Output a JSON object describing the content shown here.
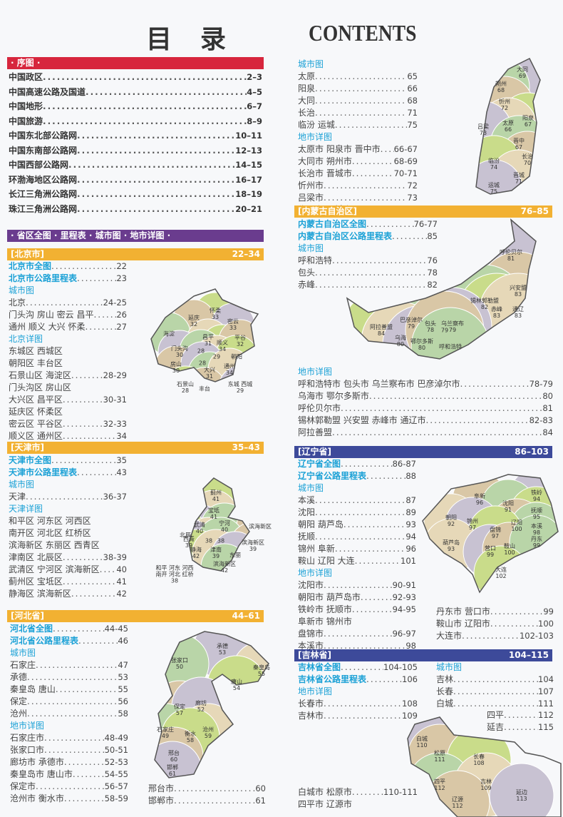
{
  "header": {
    "title_cn": "目录",
    "title_en": "CONTENTS"
  },
  "colors": {
    "preface": "#d7263d",
    "provinces": "#6a3c8e",
    "orange": "#f2b132",
    "navy": "#3d4a9a",
    "link": "#1ba1d6"
  },
  "preface": {
    "label": "· 序图 ·",
    "rows": [
      {
        "t": "中国政区",
        "p": "2–3"
      },
      {
        "t": "中国高速公路及国道",
        "p": "4–5"
      },
      {
        "t": "中国地形",
        "p": "6–7"
      },
      {
        "t": "中国旅游",
        "p": "8–9"
      },
      {
        "t": "中国东北部公路网",
        "p": "10–11"
      },
      {
        "t": "中国东南部公路网",
        "p": "12–13"
      },
      {
        "t": "中国西部公路网",
        "p": "14–15"
      },
      {
        "t": "环渤海地区公路网",
        "p": "16–17"
      },
      {
        "t": "长江三角洲公路网",
        "p": "18–19"
      },
      {
        "t": "珠江三角洲公路网",
        "p": "20–21"
      }
    ]
  },
  "provinces_bar": "· 省区全图 · 里程表 · 城市图 · 地市详图 ·",
  "sections": {
    "beijing": {
      "name": "[北京市]",
      "pages": "22–34",
      "rows": [
        {
          "t": "北京市全图",
          "p": "22",
          "k": "blue"
        },
        {
          "t": "北京市公路里程表",
          "p": "23",
          "k": "blue"
        },
        {
          "t": "城市图",
          "k": "head"
        },
        {
          "t": "北京",
          "p": "24-25"
        },
        {
          "t": "门头沟 房山 密云 昌平 ",
          "p": "26"
        },
        {
          "t": "通州 顺义 大兴 怀柔",
          "p": "27"
        },
        {
          "t": "北京详图",
          "k": "head"
        },
        {
          "t": "东城区 西城区"
        },
        {
          "t": "朝阳区 丰台区"
        },
        {
          "t": "石景山区 海淀区",
          "p": "28-29"
        },
        {
          "t": "门头沟区 房山区"
        },
        {
          "t": "大兴区 昌平区",
          "p": "30-31"
        },
        {
          "t": "延庆区 怀柔区"
        },
        {
          "t": "密云区 平谷区",
          "p": "32-33"
        },
        {
          "t": "顺义区 通州区",
          "p": "34"
        }
      ]
    },
    "tianjin": {
      "name": "[天津市]",
      "pages": "35–43",
      "rows": [
        {
          "t": "天津市全图",
          "p": "35",
          "k": "blue"
        },
        {
          "t": "天津市公路里程表",
          "p": "43",
          "k": "blue"
        },
        {
          "t": "城市图",
          "k": "head"
        },
        {
          "t": "天津",
          "p": "36-37"
        },
        {
          "t": "天津详图",
          "k": "head"
        },
        {
          "t": "和平区 河东区 河西区"
        },
        {
          "t": "南开区 河北区 红桥区"
        },
        {
          "t": "滨海新区 东丽区 西青区"
        },
        {
          "t": "津南区 北辰区",
          "p": "38-39"
        },
        {
          "t": "武清区 宁河区 滨海新区",
          "p": "40"
        },
        {
          "t": "蓟州区 宝坻区",
          "p": "41"
        },
        {
          "t": "静海区 滨海新区",
          "p": "42"
        }
      ]
    },
    "hebei": {
      "name": "[河北省]",
      "pages": "44–61",
      "rows": [
        {
          "t": "河北省全图",
          "p": "44-45",
          "k": "blue"
        },
        {
          "t": "河北省公路里程表",
          "p": "46",
          "k": "blue"
        },
        {
          "t": "城市图",
          "k": "head"
        },
        {
          "t": "石家庄",
          "p": "47"
        },
        {
          "t": "承德",
          "p": "53"
        },
        {
          "t": "秦皇岛 唐山",
          "p": "55"
        },
        {
          "t": "保定",
          "p": "56"
        },
        {
          "t": "沧州",
          "p": "58"
        },
        {
          "t": "地市详图",
          "k": "head"
        },
        {
          "t": "石家庄市",
          "p": "48-49"
        },
        {
          "t": "张家口市",
          "p": "50-51"
        },
        {
          "t": "廊坊市 承德市",
          "p": "52-53"
        },
        {
          "t": "秦皇岛市 唐山市",
          "p": "54-55"
        },
        {
          "t": "保定市",
          "p": "56-57"
        },
        {
          "t": "沧州市 衡水市",
          "p": "58-59"
        }
      ],
      "rows2": [
        {
          "t": "邢台市",
          "p": "60"
        },
        {
          "t": "邯郸市",
          "p": "61"
        }
      ]
    },
    "shanxi": {
      "rows": [
        {
          "t": "城市图",
          "k": "head"
        },
        {
          "t": "太原",
          "p": "65"
        },
        {
          "t": "阳泉",
          "p": "66"
        },
        {
          "t": "大同",
          "p": "68"
        },
        {
          "t": "长治",
          "p": "71"
        },
        {
          "t": "临汾 运城",
          "p": "75"
        },
        {
          "t": "地市详图",
          "k": "head"
        },
        {
          "t": "太原市 阳泉市 晋中市",
          "p": "66-67"
        },
        {
          "t": "大同市 朔州市",
          "p": "68-69"
        },
        {
          "t": "长治市 晋城市",
          "p": "70-71"
        },
        {
          "t": "忻州市",
          "p": "72"
        },
        {
          "t": "吕梁市",
          "p": "73"
        },
        {
          "t": "临汾市 运城市",
          "p": "74-75"
        }
      ]
    },
    "neimenggu": {
      "name": "[内蒙古自治区]",
      "pages": "76–85",
      "rows": [
        {
          "t": "内蒙古自治区全图",
          "p": "76-77",
          "k": "blue"
        },
        {
          "t": "内蒙古自治区公路里程表",
          "p": "85",
          "k": "blue"
        },
        {
          "t": "城市图",
          "k": "head"
        },
        {
          "t": "呼和浩特",
          "p": "76"
        },
        {
          "t": "包头",
          "p": "78"
        },
        {
          "t": "赤峰",
          "p": "82"
        }
      ],
      "rows2": [
        {
          "t": "地市详图",
          "k": "head"
        },
        {
          "t": "呼和浩特市 包头市 乌兰察布市 巴彦淖尔市",
          "p": "78-79"
        },
        {
          "t": "乌海市 鄂尔多斯市",
          "p": "80"
        },
        {
          "t": "呼伦贝尔市",
          "p": "81"
        },
        {
          "t": "锡林郭勒盟 兴安盟 赤峰市 通辽市",
          "p": "82-83"
        },
        {
          "t": "阿拉善盟",
          "p": "84"
        }
      ]
    },
    "liaoning": {
      "name": "[辽宁省]",
      "pages": "86–103",
      "rows": [
        {
          "t": "辽宁省全图",
          "p": "86-87",
          "k": "blue"
        },
        {
          "t": "辽宁省公路里程表",
          "p": "88",
          "k": "blue"
        },
        {
          "t": "城市图",
          "k": "head"
        },
        {
          "t": "本溪",
          "p": "87"
        },
        {
          "t": "沈阳",
          "p": "89"
        },
        {
          "t": "朝阳 葫芦岛",
          "p": "93"
        },
        {
          "t": "抚顺",
          "p": "94"
        },
        {
          "t": "锦州 阜新",
          "p": "96"
        },
        {
          "t": "鞍山 辽阳 大连",
          "p": "101"
        },
        {
          "t": "地市详图",
          "k": "head"
        },
        {
          "t": "沈阳市",
          "p": "90-91"
        },
        {
          "t": "朝阳市 葫芦岛市",
          "p": "92-93"
        },
        {
          "t": "铁岭市 抚顺市",
          "p": "94-95"
        },
        {
          "t": "阜新市 锦州市"
        },
        {
          "t": "盘锦市",
          "p": "96-97"
        },
        {
          "t": "本溪市",
          "p": "98"
        }
      ],
      "rows2": [
        {
          "t": "丹东市 营口市",
          "p": "99"
        },
        {
          "t": "鞍山市 辽阳市",
          "p": "100"
        },
        {
          "t": "大连市",
          "p": "102-103"
        }
      ]
    },
    "jilin": {
      "name": "[吉林省]",
      "pages": "104–115",
      "rows": [
        {
          "t": "吉林省全图",
          "p": "104-105",
          "k": "blue"
        },
        {
          "t": "吉林省公路里程表",
          "p": "106",
          "k": "blue"
        },
        {
          "t": "地市详图",
          "k": "head"
        },
        {
          "t": "长春市",
          "p": "108"
        },
        {
          "t": "吉林市",
          "p": "109"
        }
      ],
      "rows2": [
        {
          "t": "城市图",
          "k": "head"
        },
        {
          "t": "吉林",
          "p": "104"
        },
        {
          "t": "长春",
          "p": "107"
        },
        {
          "t": "白城",
          "p": "111"
        }
      ],
      "rows3": [
        {
          "t": "四平",
          "p": "112"
        },
        {
          "t": "延吉",
          "p": "115"
        }
      ],
      "rows4": [
        {
          "t": "白城市 松原市",
          "p": "110-111"
        },
        {
          "t": "四平市 辽源市"
        }
      ]
    }
  },
  "maps": {
    "beijing": [
      "怀柔\n33",
      "延庆\n32",
      "密云\n33",
      "海淀",
      "昌平\n31",
      "顺义\n34",
      "平谷\n32",
      "门头沟\n30",
      "28",
      "29",
      "朝阳",
      "房山\n30",
      "28",
      "大兴\n31",
      "通州\n34",
      "石景山\n28",
      "丰台",
      "东城 西城\n29"
    ],
    "tianjin": [
      "蓟州\n41",
      "宝坻\n41",
      "武清\n40",
      "宁河\n40",
      "滨海新区",
      "北辰",
      "38",
      "西青\n39",
      "38",
      "滨海新区\n39",
      "静海\n42",
      "津南\n39",
      "东丽",
      "滨海新区\n42",
      "和平 河东 河西\n南开 河北 红桥\n38"
    ],
    "hebei": [
      "承德\n53",
      "张家口\n50",
      "秦皇岛\n55",
      "唐山\n54",
      "保定\n57",
      "廊坊\n52",
      "石家庄\n49",
      "沧州\n59",
      "衡水\n58",
      "邢台\n60",
      "邯郸\n61"
    ],
    "shanxi": [
      "大同\n69",
      "朔州\n68",
      "忻州\n72",
      "阳泉\n67",
      "太原\n66",
      "吕梁\n73",
      "晋中\n67",
      "长治\n70",
      "临汾\n74",
      "晋城\n71",
      "运城\n75"
    ],
    "neimenggu": [
      "呼伦贝尔\n81",
      "兴安盟\n83",
      "锡林郭勒盟\n82",
      "赤峰\n83",
      "通辽\n83",
      "乌兰察布\n79",
      "包头\n78",
      "巴彦淖尔\n79",
      "阿拉善盟\n84",
      "乌海\n80",
      "鄂尔多斯\n80",
      "79",
      "呼和浩特"
    ],
    "liaoning": [
      "铁岭\n94",
      "阜新\n96",
      "沈阳\n91",
      "抚顺\n95",
      "朝阳\n92",
      "锦州\n97",
      "辽阳\n100",
      "本溪\n98",
      "盘锦\n97",
      "葫芦岛\n93",
      "营口\n99",
      "鞍山\n100",
      "丹东\n99",
      "大连\n102"
    ],
    "jilin": [
      "白城\n110",
      "松原\n111",
      "长春\n108",
      "四平\n112",
      "吉林\n109",
      "延边\n113",
      "辽源\n112"
    ]
  }
}
